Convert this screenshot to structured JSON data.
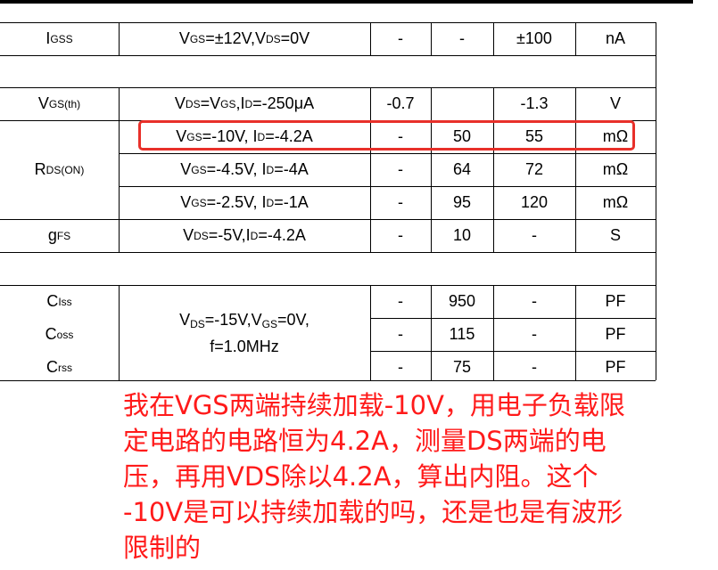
{
  "rows": [
    {
      "param": "I",
      "param_sub": "GSS",
      "cond": [
        [
          "V",
          "GS"
        ],
        [
          "=±12V,V",
          "DS"
        ],
        [
          "=0V",
          ""
        ]
      ],
      "min": "-",
      "typ": "-",
      "max": "±100",
      "unit": "nA"
    },
    {
      "param": "V",
      "param_sub": "GS(th)",
      "cond": [
        [
          "V",
          "DS"
        ],
        [
          "=V",
          "GS"
        ],
        [
          ",I",
          "D"
        ],
        [
          "=-250μA",
          ""
        ]
      ],
      "min": "-0.7",
      "typ": "",
      "max": "-1.3",
      "unit": "V"
    },
    {
      "param": "R",
      "param_sub": "DS(ON)",
      "cond": [
        [
          "V",
          "GS"
        ],
        [
          "=-10V, I",
          "D"
        ],
        [
          "=-4.2A",
          ""
        ]
      ],
      "min": "-",
      "typ": "50",
      "max": "55",
      "unit": "mΩ"
    },
    {
      "cond": [
        [
          "V",
          "GS"
        ],
        [
          "=-4.5V, I",
          "D"
        ],
        [
          "=-4A",
          ""
        ]
      ],
      "min": "-",
      "typ": "64",
      "max": "72",
      "unit": "mΩ"
    },
    {
      "cond": [
        [
          "V",
          "GS"
        ],
        [
          "=-2.5V, I",
          "D"
        ],
        [
          "=-1A",
          ""
        ]
      ],
      "min": "-",
      "typ": "95",
      "max": "120",
      "unit": "mΩ"
    },
    {
      "param": "g",
      "param_sub": "FS",
      "cond": [
        [
          "V",
          "DS"
        ],
        [
          "=-5V,I",
          "D"
        ],
        [
          "=-4.2A",
          ""
        ]
      ],
      "min": "-",
      "typ": "10",
      "max": "-",
      "unit": "S"
    },
    {
      "param": "C",
      "param_sub": "Iss",
      "min": "-",
      "typ": "950",
      "max": "-",
      "unit": "PF"
    },
    {
      "param": "C",
      "param_sub": "oss",
      "min": "-",
      "typ": "115",
      "max": "-",
      "unit": "PF"
    },
    {
      "param": "C",
      "param_sub": "rss",
      "min": "-",
      "typ": "75",
      "max": "-",
      "unit": "PF"
    }
  ],
  "cap_cond_line1": [
    [
      "V",
      "DS"
    ],
    [
      "=-15V,V",
      "GS"
    ],
    [
      "=0V,",
      ""
    ]
  ],
  "cap_cond_line2": "f=1.0MHz",
  "highlight_color": "#e8302a",
  "annotation": {
    "color": "#ff1a1a",
    "lines": [
      "我在VGS两端持续加载-10V，用电子负载限",
      "定电路的电路恒为4.2A，测量DS两端的电",
      "压，再用VDS除以4.2A，算出内阻。这个",
      "-10V是可以持续加载的吗，还是也是有波形",
      "限制的"
    ]
  }
}
